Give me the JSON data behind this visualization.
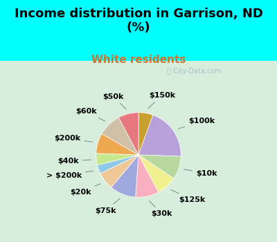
{
  "title": "Income distribution in Garrison, ND\n(%)",
  "subtitle": "White residents",
  "background_color": "#00FFFF",
  "chart_bg_color": "#d8eedc",
  "watermark": "City-Data.com",
  "label_fontsize": 8.0,
  "title_fontsize": 13,
  "subtitle_fontsize": 11,
  "subtitle_color": "#c87832",
  "wedge_labels": [
    "$150k",
    "$100k",
    "$10k",
    "$125k",
    "$30k",
    "$75k",
    "$20k",
    "> $200k",
    "$40k",
    "$200k",
    "$60k",
    "$50k"
  ],
  "wedge_values": [
    5,
    18,
    8,
    7,
    8,
    9,
    6,
    3,
    4,
    7,
    8,
    7
  ],
  "wedge_colors": [
    "#c8a030",
    "#b8a0d8",
    "#b8d8a0",
    "#f0f090",
    "#f8b0c0",
    "#a0a8e0",
    "#f0c898",
    "#90c8e8",
    "#c8e890",
    "#f0a850",
    "#d0c0a8",
    "#e87880"
  ]
}
